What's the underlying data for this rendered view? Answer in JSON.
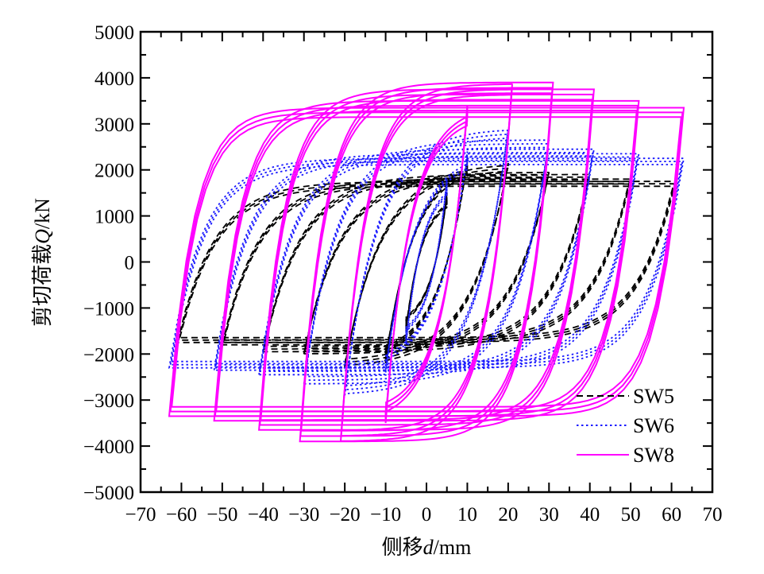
{
  "chart_data": {
    "type": "line",
    "title": "",
    "xlabel": {
      "prefix": "侧移",
      "var": "d",
      "suffix": "/mm"
    },
    "ylabel": {
      "prefix": "剪切荷载",
      "var": "Q",
      "suffix": "/kN"
    },
    "xlim": [
      -70,
      70
    ],
    "ylim": [
      -5000,
      5000
    ],
    "xticks": [
      "−70",
      "−60",
      "−50",
      "−40",
      "−30",
      "−20",
      "−10",
      "0",
      "10",
      "20",
      "30",
      "40",
      "50",
      "60",
      "70"
    ],
    "xtick_values": [
      -70,
      -60,
      -50,
      -40,
      -30,
      -20,
      -10,
      0,
      10,
      20,
      30,
      40,
      50,
      60,
      70
    ],
    "yticks": [
      "5000",
      "4000",
      "3000",
      "2000",
      "1000",
      "0",
      "−1000",
      "−2000",
      "−3000",
      "−4000",
      "−5000"
    ],
    "ytick_values": [
      5000,
      4000,
      3000,
      2000,
      1000,
      0,
      -1000,
      -2000,
      -3000,
      -4000,
      -5000
    ],
    "grid": false,
    "legend_position": "bottom-right",
    "series": [
      {
        "name": "SW5",
        "color": "#000000",
        "style": "dashed",
        "shape": 9,
        "levels": [
          {
            "amp": 5,
            "pos": 1500,
            "neg": 1500
          },
          {
            "amp": 10,
            "pos": 2250,
            "neg": 2200
          },
          {
            "amp": 20,
            "pos": 2150,
            "neg": 2300
          },
          {
            "amp": 30,
            "pos": 1950,
            "neg": 2000
          },
          {
            "amp": 40,
            "pos": 1900,
            "neg": 1950
          },
          {
            "amp": 50,
            "pos": 1800,
            "neg": 1800
          },
          {
            "amp": 61,
            "pos": 1750,
            "neg": 1750
          }
        ]
      },
      {
        "name": "SW6",
        "color": "#1a1aff",
        "style": "dotted",
        "shape": 8,
        "levels": [
          {
            "amp": 5,
            "pos": 1800,
            "neg": 1800
          },
          {
            "amp": 10,
            "pos": 2400,
            "neg": 2400
          },
          {
            "amp": 20,
            "pos": 2900,
            "neg": 2900
          },
          {
            "amp": 30,
            "pos": 2650,
            "neg": 2650
          },
          {
            "amp": 41,
            "pos": 2450,
            "neg": 2450
          },
          {
            "amp": 52,
            "pos": 2350,
            "neg": 2350
          },
          {
            "amp": 63,
            "pos": 2250,
            "neg": 2300
          }
        ]
      },
      {
        "name": "SW8",
        "color": "#ff00ff",
        "style": "solid",
        "shape": 6,
        "levels": [
          {
            "amp": 10,
            "pos": 3400,
            "neg": 3500
          },
          {
            "amp": 21,
            "pos": 3870,
            "neg": 3900
          },
          {
            "amp": 31,
            "pos": 3900,
            "neg": 3900
          },
          {
            "amp": 41,
            "pos": 3750,
            "neg": 3650
          },
          {
            "amp": 52,
            "pos": 3500,
            "neg": 3450
          },
          {
            "amp": 63,
            "pos": 3350,
            "neg": 3350
          }
        ]
      }
    ]
  }
}
